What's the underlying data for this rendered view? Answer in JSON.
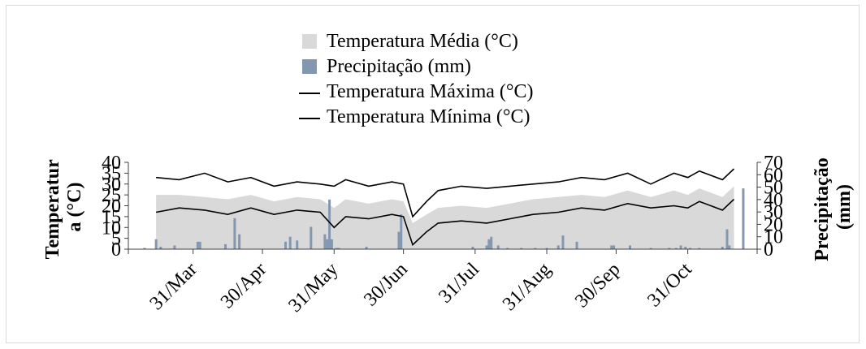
{
  "chart_data": {
    "type": "bar+area+line",
    "legend": {
      "placement": "top-center",
      "entries": [
        {
          "label": "Temperatura Média (°C)",
          "kind": "area",
          "color": "#d9d9d9"
        },
        {
          "label": "Precipitação (mm)",
          "kind": "bar",
          "color": "#8497b0"
        },
        {
          "label": "Temperatura Máxima (°C)",
          "kind": "line",
          "color": "#000000"
        },
        {
          "label": "Temperatura Mínima (°C)",
          "kind": "line",
          "color": "#000000"
        }
      ]
    },
    "y_left_label": "Temperatura (°C)",
    "y_left_label_lines": [
      "Temperatur",
      "a (°C)"
    ],
    "y_right_label": "Precipitação (mm)",
    "y_right_label_lines": [
      "Precipitação",
      "(mm)"
    ],
    "y_left_ticks": [
      "0",
      "5",
      "10",
      "15",
      "20",
      "25",
      "30",
      "35",
      "40"
    ],
    "y_right_ticks": [
      "0",
      "10",
      "20",
      "30",
      "40",
      "50",
      "60",
      "70"
    ],
    "y_left_lim": [
      0,
      40
    ],
    "y_right_lim": [
      0,
      70
    ],
    "x_tick_labels": [
      "31/Mar",
      "30/Apr",
      "31/May",
      "30/Jun",
      "31/Jul",
      "31/Aug",
      "30/Sep",
      "31/Oct"
    ],
    "x_range": [
      "03/Mar",
      "30/Nov"
    ],
    "grid": false,
    "colors": {
      "mean_area": "#d9d9d9",
      "precip_bar": "#8497b0",
      "lines": "#000000",
      "axis": "#404040"
    },
    "series": [
      {
        "name": "Temperatura Máxima (°C)",
        "dates": [
          "15/Mar",
          "25/Mar",
          "05/Apr",
          "15/Apr",
          "25/Apr",
          "05/May",
          "15/May",
          "25/May",
          "31/May",
          "05/Jun",
          "15/Jun",
          "25/Jun",
          "30/Jun",
          "04/Jul",
          "10/Jul",
          "15/Jul",
          "25/Jul",
          "05/Aug",
          "15/Aug",
          "25/Aug",
          "05/Sep",
          "15/Sep",
          "25/Sep",
          "05/Oct",
          "15/Oct",
          "25/Oct",
          "31/Oct",
          "05/Nov",
          "15/Nov",
          "20/Nov"
        ],
        "values": [
          33,
          32,
          35,
          31,
          33,
          29,
          31,
          30,
          29,
          32,
          29,
          31,
          30,
          15,
          22,
          27,
          29,
          28,
          29,
          30,
          31,
          33,
          32,
          35,
          30,
          35,
          33,
          36,
          32,
          37
        ]
      },
      {
        "name": "Temperatura Mínima (°C)",
        "dates": [
          "15/Mar",
          "25/Mar",
          "05/Apr",
          "15/Apr",
          "25/Apr",
          "05/May",
          "15/May",
          "25/May",
          "31/May",
          "05/Jun",
          "15/Jun",
          "25/Jun",
          "30/Jun",
          "04/Jul",
          "10/Jul",
          "15/Jul",
          "25/Jul",
          "05/Aug",
          "15/Aug",
          "25/Aug",
          "05/Sep",
          "15/Sep",
          "25/Sep",
          "05/Oct",
          "15/Oct",
          "25/Oct",
          "31/Oct",
          "05/Nov",
          "15/Nov",
          "20/Nov"
        ],
        "values": [
          17,
          19,
          18,
          16,
          19,
          16,
          18,
          17,
          10,
          15,
          14,
          16,
          15,
          2,
          8,
          12,
          13,
          12,
          14,
          16,
          17,
          19,
          18,
          21,
          19,
          20,
          19,
          22,
          18,
          23
        ]
      },
      {
        "name": "Temperatura Média (°C)",
        "dates": [
          "15/Mar",
          "25/Mar",
          "05/Apr",
          "15/Apr",
          "25/Apr",
          "05/May",
          "15/May",
          "25/May",
          "31/May",
          "05/Jun",
          "15/Jun",
          "25/Jun",
          "30/Jun",
          "04/Jul",
          "10/Jul",
          "15/Jul",
          "25/Jul",
          "05/Aug",
          "15/Aug",
          "25/Aug",
          "05/Sep",
          "15/Sep",
          "25/Sep",
          "05/Oct",
          "15/Oct",
          "25/Oct",
          "31/Oct",
          "05/Nov",
          "15/Nov",
          "20/Nov"
        ],
        "values": [
          25,
          25,
          24,
          23,
          25,
          22,
          24,
          23,
          19,
          23,
          21,
          23,
          22,
          12,
          16,
          19,
          20,
          19,
          21,
          23,
          24,
          25,
          24,
          27,
          24,
          27,
          25,
          28,
          24,
          29
        ]
      },
      {
        "name": "Precipitação (mm)",
        "dates": [
          "10/Mar",
          "15/Mar",
          "17/Mar",
          "23/Mar",
          "02/Apr",
          "03/Apr",
          "14/Apr",
          "18/Apr",
          "20/Apr",
          "10/May",
          "12/May",
          "15/May",
          "21/May",
          "27/May",
          "28/May",
          "29/May",
          "30/May",
          "01/Jun",
          "02/Jun",
          "14/Jun",
          "28/Jun",
          "29/Jun",
          "30/Jul",
          "05/Aug",
          "06/Aug",
          "07/Aug",
          "10/Aug",
          "14/Aug",
          "20/Aug",
          "26/Aug",
          "31/Aug",
          "05/Sep",
          "07/Sep",
          "13/Sep",
          "28/Sep",
          "29/Sep",
          "06/Oct",
          "15/Oct",
          "23/Oct",
          "26/Oct",
          "28/Oct",
          "30/Oct",
          "01/Nov",
          "05/Nov",
          "15/Nov",
          "17/Nov",
          "18/Nov",
          "24/Nov"
        ],
        "values": [
          1,
          8,
          2,
          3,
          6,
          6,
          4,
          25,
          12,
          6,
          10,
          7,
          18,
          12,
          8,
          40,
          8,
          1,
          1,
          2,
          14,
          28,
          2,
          3,
          8,
          10,
          3,
          1,
          1,
          1,
          1,
          3,
          11,
          6,
          3,
          3,
          3,
          1,
          1,
          1,
          3,
          2,
          1,
          1,
          2,
          16,
          3,
          49
        ]
      }
    ]
  }
}
